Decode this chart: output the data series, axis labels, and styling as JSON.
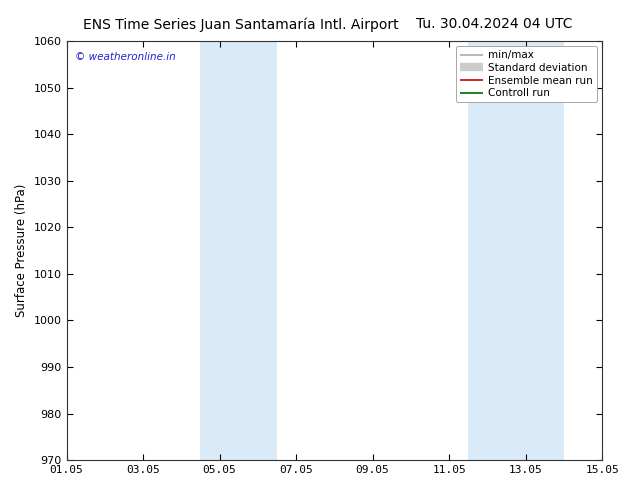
{
  "title_left": "ENS Time Series Juan Santamaría Intl. Airport",
  "title_right": "Tu. 30.04.2024 04 UTC",
  "ylabel": "Surface Pressure (hPa)",
  "ylim": [
    970,
    1060
  ],
  "yticks": [
    970,
    980,
    990,
    1000,
    1010,
    1020,
    1030,
    1040,
    1050,
    1060
  ],
  "xtick_labels": [
    "01.05",
    "03.05",
    "05.05",
    "07.05",
    "09.05",
    "11.05",
    "13.05",
    "15.05"
  ],
  "xtick_positions": [
    0,
    2,
    4,
    6,
    8,
    10,
    12,
    14
  ],
  "shaded_bands": [
    {
      "x_start": 3.5,
      "x_end": 5.5,
      "color": "#daeaf7"
    },
    {
      "x_start": 10.5,
      "x_end": 13.0,
      "color": "#daeaf7"
    }
  ],
  "legend_items": [
    {
      "label": "min/max",
      "color": "#aaaaaa",
      "lw": 1.2
    },
    {
      "label": "Standard deviation",
      "color": "#cccccc",
      "lw": 6
    },
    {
      "label": "Ensemble mean run",
      "color": "#cc0000",
      "lw": 1.2
    },
    {
      "label": "Controll run",
      "color": "#006600",
      "lw": 1.2
    }
  ],
  "watermark_text": "© weatheronline.in",
  "watermark_color": "#2222cc",
  "bg_color": "#ffffff",
  "plot_bg_color": "#ffffff",
  "title_fontsize": 10,
  "axis_label_fontsize": 8.5,
  "tick_fontsize": 8,
  "legend_fontsize": 7.5
}
